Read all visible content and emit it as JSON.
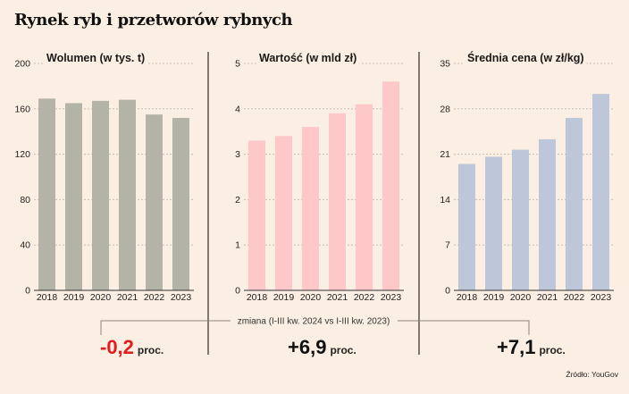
{
  "title": "Rynek ryb i przetworów rybnych",
  "change_caption": "zmiana (I-III kw. 2024 vs I-III kw. 2023)",
  "source": "Źródło: YouGov",
  "colors": {
    "background": "#fbeee2",
    "volume_bar": "#b4b3a7",
    "value_bar": "#fdc8c7",
    "price_bar": "#bdc7d9",
    "negative": "#e31b1b",
    "positive": "#111111"
  },
  "chart_data": [
    {
      "type": "bar",
      "title": "Wolumen (w tys. t)",
      "xlabel": "",
      "ylabel": "",
      "categories": [
        "2018",
        "2019",
        "2020",
        "2021",
        "2022",
        "2023"
      ],
      "values": [
        169,
        165,
        167,
        168,
        155,
        152
      ],
      "ylim": [
        0,
        200
      ],
      "yticks": [
        0,
        40,
        80,
        120,
        160,
        200
      ],
      "ytick_labels": [
        "0",
        "40",
        "80",
        "120",
        "160",
        "200"
      ],
      "grid": true,
      "color_key": "volume_bar",
      "change": {
        "value": "-0,2",
        "unit": "proc.",
        "color_key": "negative"
      }
    },
    {
      "type": "bar",
      "title": "Wartość (w mld zł)",
      "xlabel": "",
      "ylabel": "",
      "categories": [
        "2018",
        "2019",
        "2020",
        "2021",
        "2022",
        "2023"
      ],
      "values": [
        3.3,
        3.4,
        3.6,
        3.9,
        4.1,
        4.6
      ],
      "ylim": [
        0,
        5
      ],
      "yticks": [
        0,
        1,
        2,
        3,
        4,
        5
      ],
      "ytick_labels": [
        "0",
        "1",
        "2",
        "3",
        "4",
        "5"
      ],
      "grid": true,
      "color_key": "value_bar",
      "change": {
        "value": "+6,9",
        "unit": "proc.",
        "color_key": "positive"
      }
    },
    {
      "type": "bar",
      "title": "Średnia cena (w zł/kg)",
      "xlabel": "",
      "ylabel": "",
      "categories": [
        "2018",
        "2019",
        "2020",
        "2021",
        "2022",
        "2023"
      ],
      "values": [
        19.5,
        20.6,
        21.7,
        23.3,
        26.6,
        30.3
      ],
      "ylim": [
        0,
        35
      ],
      "yticks": [
        0,
        7,
        14,
        21,
        28,
        35
      ],
      "ytick_labels": [
        "0",
        "7",
        "14",
        "21",
        "28",
        "35"
      ],
      "grid": true,
      "color_key": "price_bar",
      "change": {
        "value": "+7,1",
        "unit": "proc.",
        "color_key": "positive"
      }
    }
  ]
}
